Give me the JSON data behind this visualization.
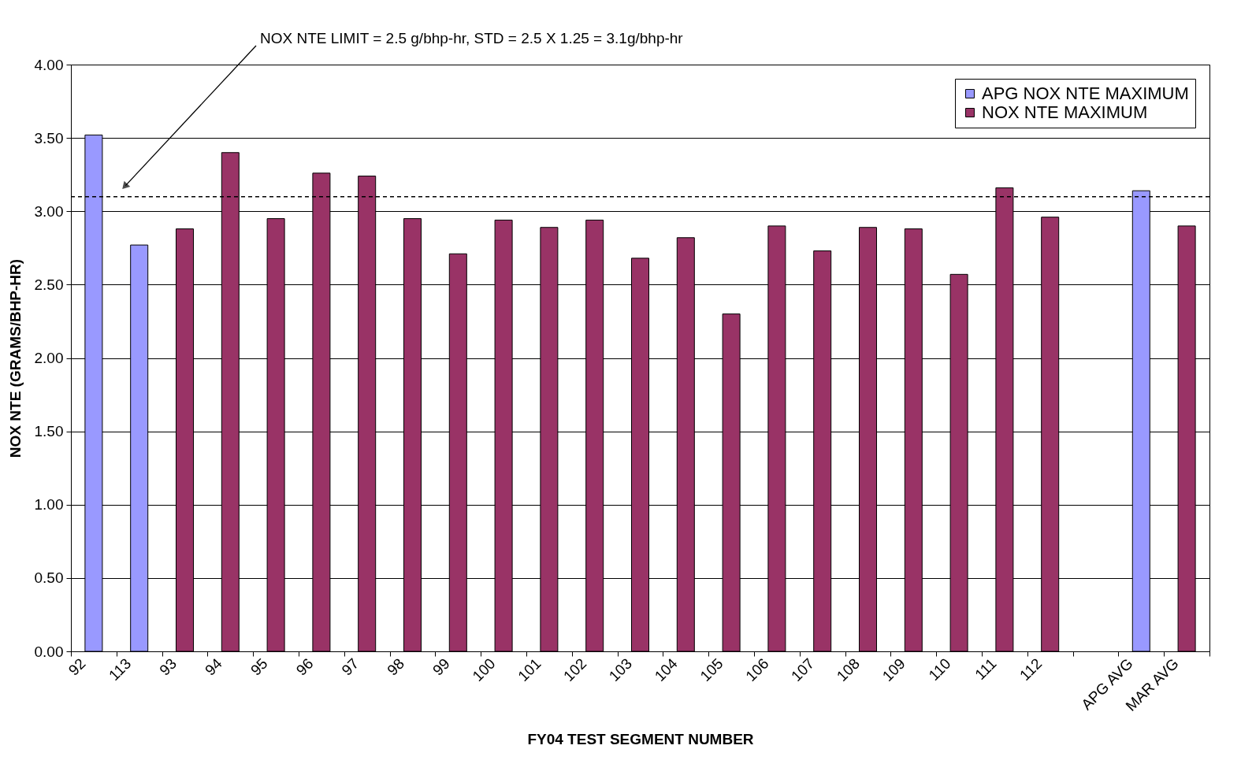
{
  "chart_data": {
    "type": "bar",
    "xlabel": "FY04 TEST SEGMENT NUMBER",
    "ylabel": "NOX NTE  (GRAMS/BHP-HR)",
    "categories": [
      "92",
      "113",
      "93",
      "94",
      "95",
      "96",
      "97",
      "98",
      "99",
      "100",
      "101",
      "102",
      "103",
      "104",
      "105",
      "106",
      "107",
      "108",
      "109",
      "110",
      "111",
      "112",
      null,
      "APG AVG",
      "MAR AVG"
    ],
    "series": [
      {
        "name": "APG NOX NTE MAXIMUM",
        "color": "#9999ff",
        "values": [
          3.52,
          2.77,
          null,
          null,
          null,
          null,
          null,
          null,
          null,
          null,
          null,
          null,
          null,
          null,
          null,
          null,
          null,
          null,
          null,
          null,
          null,
          null,
          null,
          3.14,
          null
        ]
      },
      {
        "name": "NOX NTE MAXIMUM",
        "color": "#993366",
        "values": [
          null,
          null,
          2.88,
          3.4,
          2.95,
          3.26,
          3.24,
          2.95,
          2.71,
          2.94,
          2.89,
          2.94,
          2.68,
          2.82,
          2.3,
          2.9,
          2.73,
          2.89,
          2.88,
          2.57,
          3.16,
          2.96,
          null,
          null,
          2.9
        ]
      }
    ],
    "ylim": [
      0,
      4
    ],
    "yticks": [
      {
        "value": 0,
        "label": "0.00"
      },
      {
        "value": 0.5,
        "label": "0.50"
      },
      {
        "value": 1,
        "label": "1.00"
      },
      {
        "value": 1.5,
        "label": "1.50"
      },
      {
        "value": 2,
        "label": "2.00"
      },
      {
        "value": 2.5,
        "label": "2.50"
      },
      {
        "value": 3,
        "label": "3.00"
      },
      {
        "value": 3.5,
        "label": "3.50"
      },
      {
        "value": 4,
        "label": "4.00"
      }
    ],
    "ref_lines": [
      {
        "axis": "y",
        "value": 3.1,
        "line_style": "dashed",
        "color": "#000000"
      }
    ],
    "annotations": [
      "NOX NTE LIMIT = 2.5 g/bhp-hr, STD = 2.5 X 1.25 = 3.1g/bhp-hr"
    ],
    "grid": "y",
    "legend": "top right"
  }
}
